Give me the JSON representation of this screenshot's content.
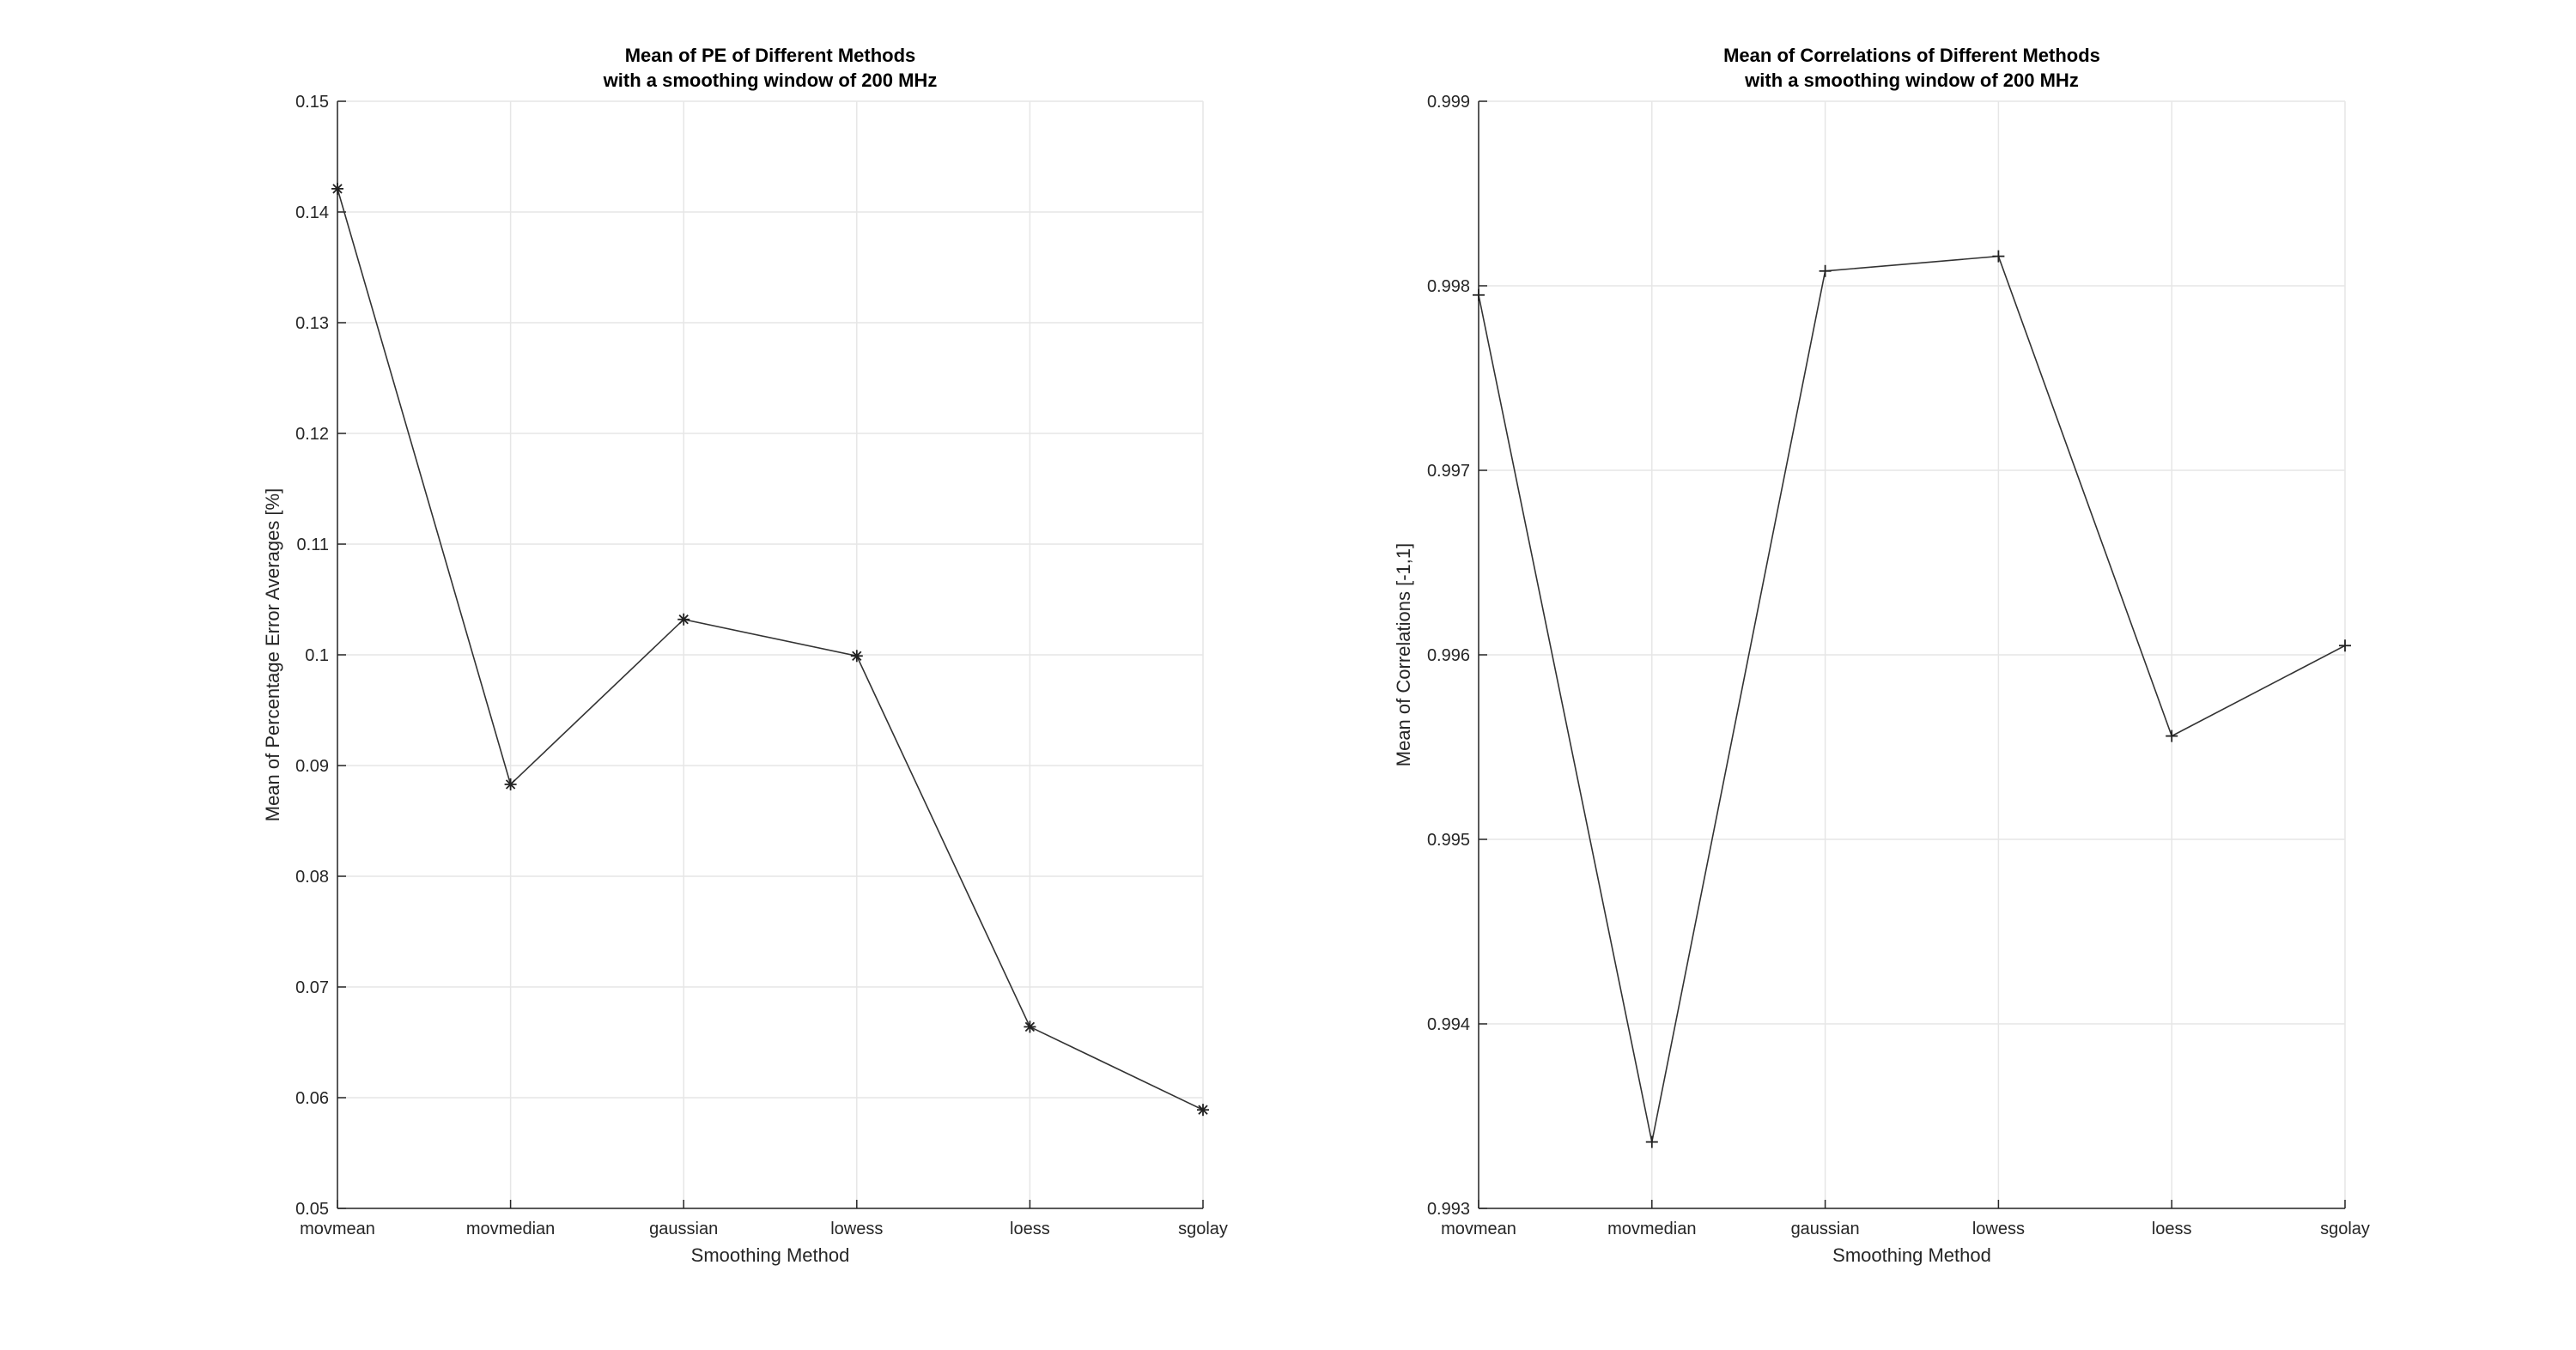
{
  "chart_data": [
    {
      "type": "line",
      "title": [
        "Mean of PE of Different Methods",
        "with a smoothing window of 200 MHz"
      ],
      "xlabel": "Smoothing Method",
      "ylabel": "Mean of Percentage Error Averages [%]",
      "categories": [
        "movmean",
        "movmedian",
        "gaussian",
        "lowess",
        "loess",
        "sgolay"
      ],
      "series": [
        {
          "values": [
            0.1421,
            0.0883,
            0.1032,
            0.0999,
            0.0664,
            0.0589
          ],
          "marker": "asterisk",
          "color": "#333333"
        }
      ],
      "ylim": [
        0.05,
        0.15
      ],
      "yticks": [
        0.05,
        0.06,
        0.07,
        0.08,
        0.09,
        0.1,
        0.11,
        0.12,
        0.13,
        0.14,
        0.15
      ],
      "ytick_labels": [
        "0.05",
        "0.06",
        "0.07",
        "0.08",
        "0.09",
        "0.1",
        "0.11",
        "0.12",
        "0.13",
        "0.14",
        "0.15"
      ],
      "grid": true
    },
    {
      "type": "line",
      "title": [
        "Mean of Correlations of Different Methods",
        "with a smoothing window of 200 MHz"
      ],
      "xlabel": "Smoothing Method",
      "ylabel": "Mean of Correlations [-1,1]",
      "categories": [
        "movmean",
        "movmedian",
        "gaussian",
        "lowess",
        "loess",
        "sgolay"
      ],
      "series": [
        {
          "values": [
            0.99795,
            0.99336,
            0.99808,
            0.99816,
            0.99556,
            0.99605
          ],
          "marker": "plus",
          "color": "#333333"
        }
      ],
      "ylim": [
        0.993,
        0.999
      ],
      "yticks": [
        0.993,
        0.994,
        0.995,
        0.996,
        0.997,
        0.998,
        0.999
      ],
      "ytick_labels": [
        "0.993",
        "0.994",
        "0.995",
        "0.996",
        "0.997",
        "0.998",
        "0.999"
      ],
      "grid": true
    }
  ]
}
